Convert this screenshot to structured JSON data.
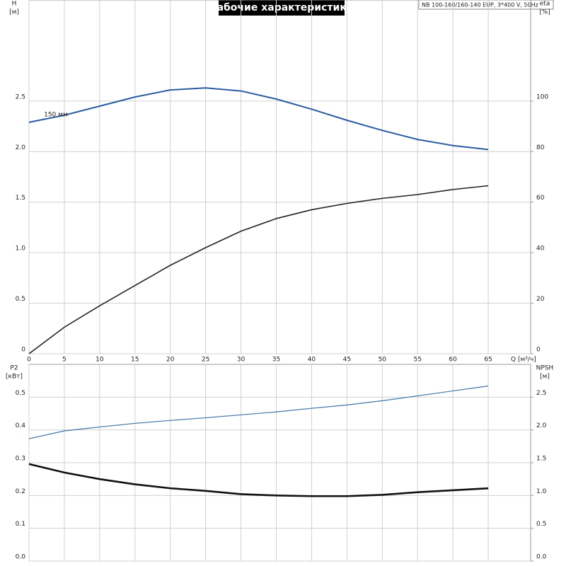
{
  "chart_data": [
    {
      "type": "line",
      "title": "Рабочие характеристики",
      "subtitle": "NB 100-160/160-140 EUP, 3*400 V, 50Hz",
      "annotation": "150 мм",
      "x_label": "Q [м³/ч]",
      "y_label": "H",
      "y_unit": "[м]",
      "y2_label": "eta",
      "y2_unit": "[%]",
      "x": [
        0,
        5,
        10,
        15,
        20,
        25,
        30,
        35,
        40,
        45,
        50,
        55,
        60,
        65
      ],
      "xlim": [
        0,
        71
      ],
      "xticks": [
        0,
        5,
        10,
        15,
        20,
        25,
        30,
        35,
        40,
        45,
        50,
        55,
        60,
        65
      ],
      "ylim": [
        0,
        3.5
      ],
      "yticks": [
        0,
        0.5,
        {
          "value": 1,
          "label": "1.0"
        },
        1.5,
        {
          "value": 2,
          "label": "2.0"
        },
        2.5
      ],
      "y2lim": [
        0,
        140
      ],
      "y2ticks": [
        0,
        20,
        40,
        60,
        80,
        100
      ],
      "grid": true,
      "series": [
        {
          "color": "#2a5d9f",
          "values": [
            2.29,
            2.36,
            2.45,
            2.54,
            2.61,
            2.63,
            2.6,
            2.52,
            2.42,
            2.31,
            2.21,
            2.12,
            2.06,
            2.02
          ]
        },
        {
          "color": "#222222",
          "axis": "y2",
          "values": [
            0,
            10.5,
            19,
            27,
            35,
            42,
            48.5,
            53.5,
            57,
            59.5,
            61.5,
            63,
            65,
            66.5
          ]
        }
      ]
    },
    {
      "type": "line",
      "y_label": "P2",
      "y_unit": "[кВт]",
      "y2_label": "NPSH",
      "y2_unit": "[м]",
      "x": [
        0,
        5,
        10,
        15,
        20,
        25,
        30,
        35,
        40,
        45,
        50,
        55,
        60,
        65
      ],
      "xlim": [
        0,
        71
      ],
      "ylim": [
        0,
        0.6
      ],
      "yticks": [
        {
          "value": 0,
          "label": "0.0"
        },
        0.1,
        0.2,
        0.3,
        0.4,
        0.5
      ],
      "y2lim": [
        0,
        3
      ],
      "y2ticks": [
        {
          "value": 0,
          "label": "0.0"
        },
        0.5,
        {
          "value": 1,
          "label": "1.0"
        },
        1.5,
        {
          "value": 2,
          "label": "2.0"
        },
        2.5
      ],
      "grid": true,
      "series": [
        {
          "color": "#4f7fae",
          "values": [
            0.373,
            0.397,
            0.409,
            0.42,
            0.429,
            0.437,
            0.446,
            0.455,
            0.466,
            0.476,
            0.489,
            0.504,
            0.519,
            0.534
          ]
        },
        {
          "color": "#111111",
          "axis": "y2",
          "values": [
            1.48,
            1.35,
            1.25,
            1.17,
            1.11,
            1.07,
            1.02,
            1.0,
            0.99,
            0.99,
            1.01,
            1.05,
            1.08,
            1.11
          ]
        }
      ]
    }
  ]
}
